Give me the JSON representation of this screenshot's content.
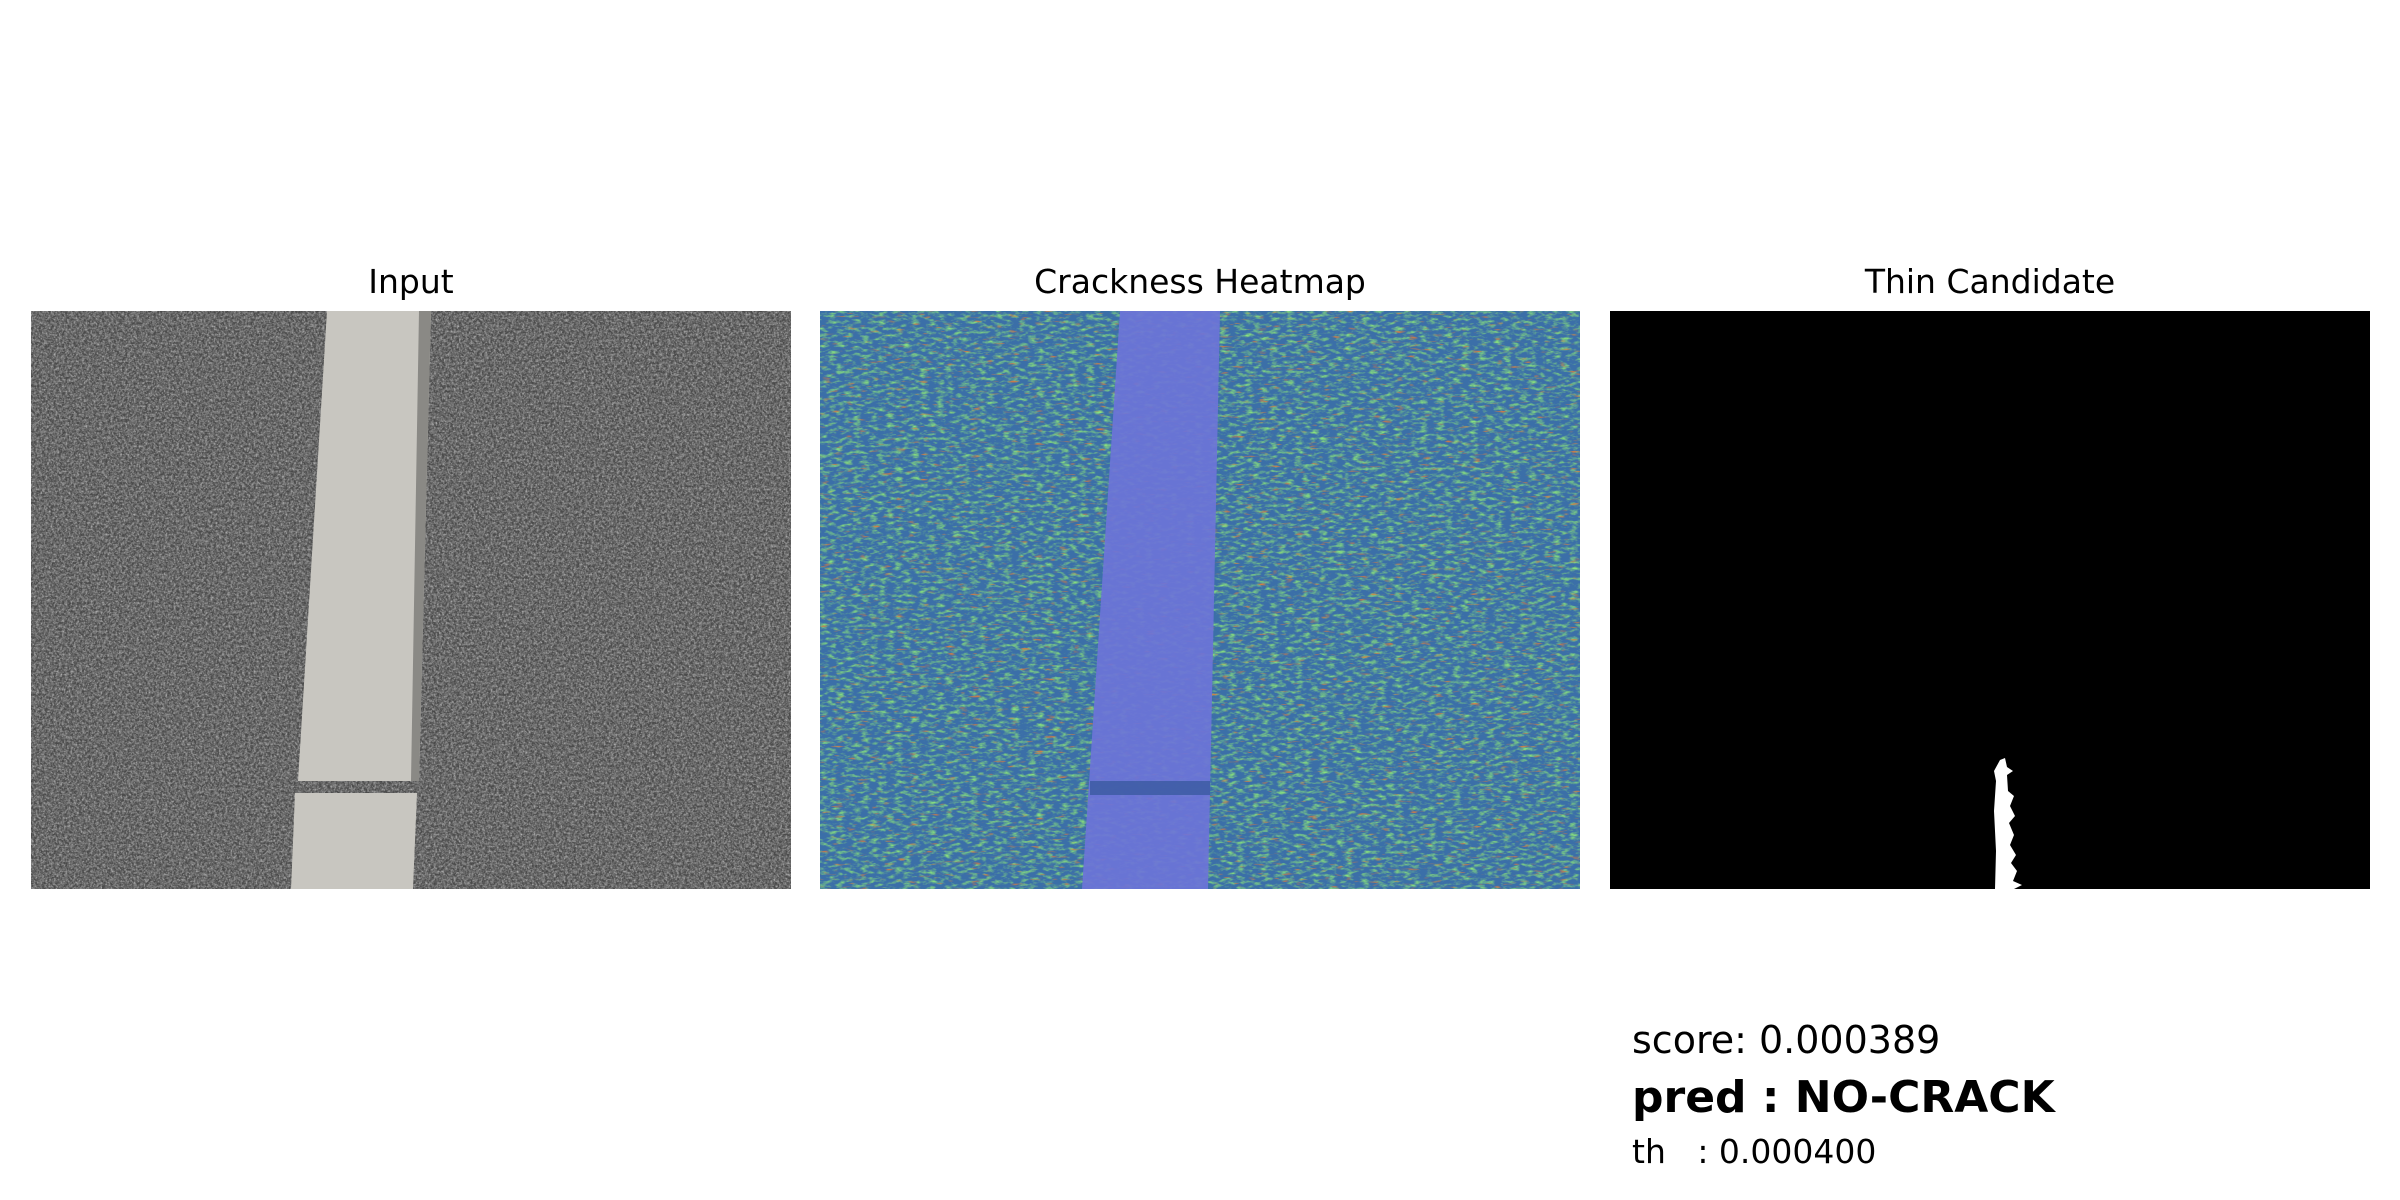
{
  "panels": [
    {
      "title": "Input"
    },
    {
      "title": "Crackness Heatmap"
    },
    {
      "title": "Thin Candidate"
    }
  ],
  "result": {
    "score": "score: 0.000389",
    "pred": "pred : NO-CRACK",
    "th": "th   : 0.000400"
  },
  "colors": {
    "asphalt": "#4a4a4a",
    "curb": "#c8c6c0",
    "heatmap_base": "#3f7fa0",
    "heatmap_curb": "#6c74d8",
    "mask_bg": "#000000",
    "mask_fg": "#ffffff"
  }
}
